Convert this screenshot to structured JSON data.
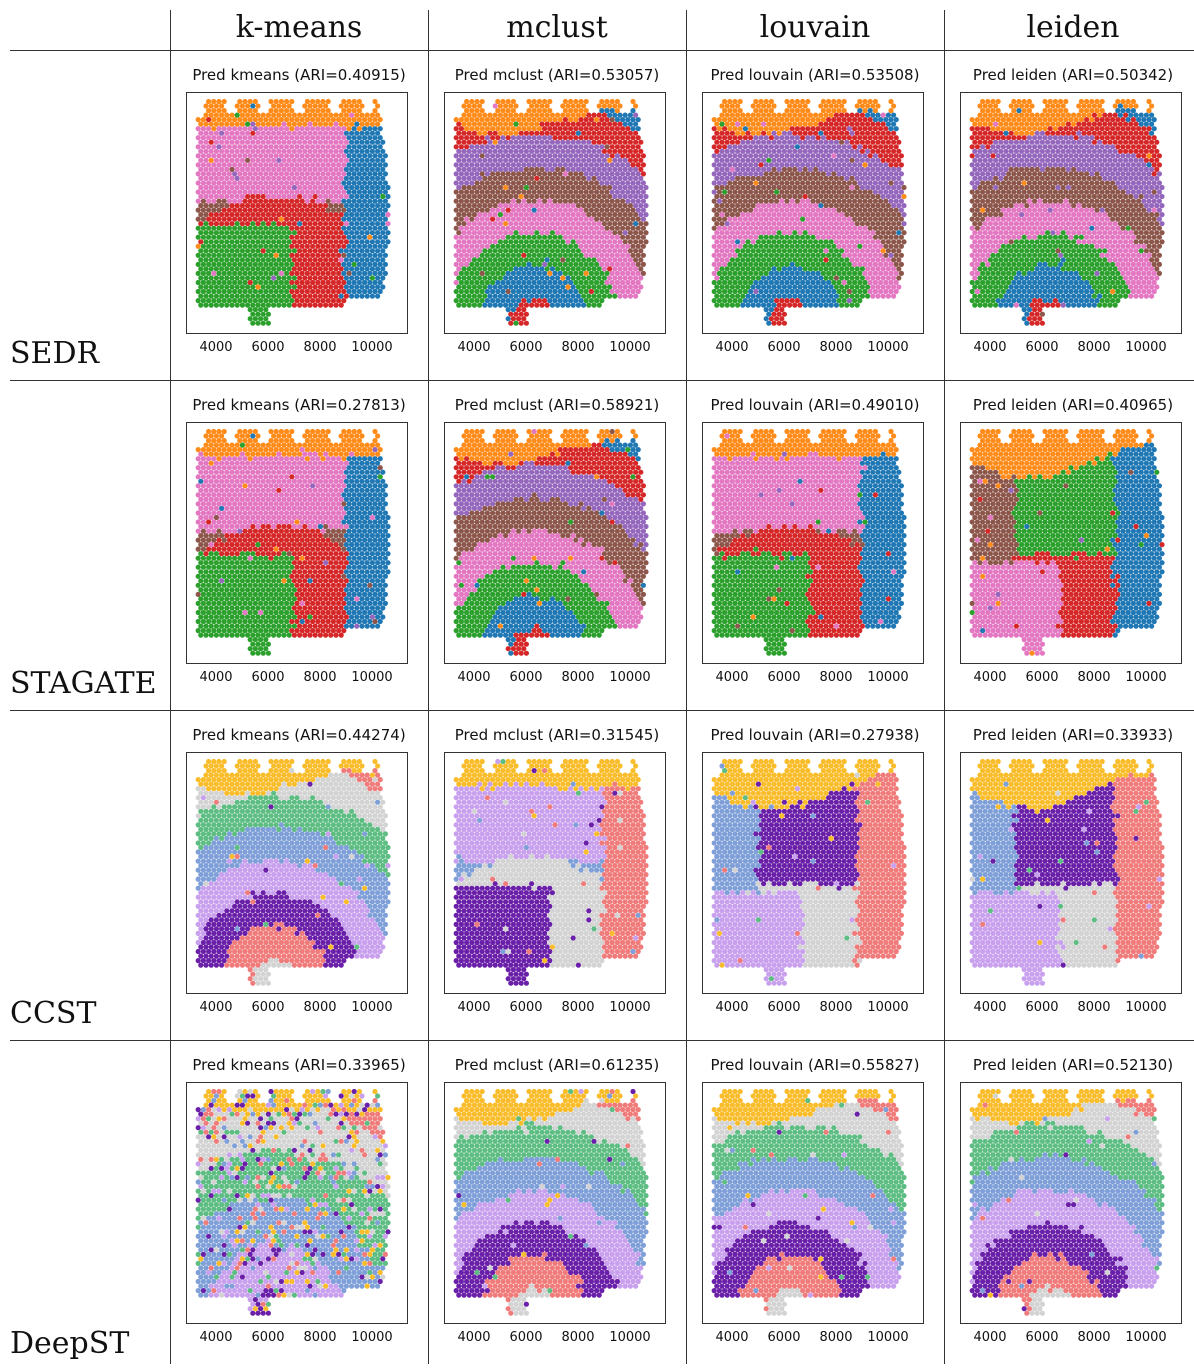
{
  "columns": [
    "k-means",
    "mclust",
    "louvain",
    "leiden"
  ],
  "rows": [
    {
      "label": "SEDR",
      "palette": "tab",
      "titles": [
        "Pred kmeans (ARI=0.40915)",
        "Pred mclust (ARI=0.53057)",
        "Pred louvain (ARI=0.53508)",
        "Pred leiden (ARI=0.50342)"
      ]
    },
    {
      "label": "STAGATE",
      "palette": "tab",
      "titles": [
        "Pred kmeans (ARI=0.27813)",
        "Pred mclust (ARI=0.58921)",
        "Pred louvain (ARI=0.49010)",
        "Pred leiden (ARI=0.40965)"
      ]
    },
    {
      "label": "CCST",
      "palette": "pastel",
      "titles": [
        "Pred kmeans (ARI=0.44274)",
        "Pred mclust (ARI=0.31545)",
        "Pred louvain (ARI=0.27938)",
        "Pred leiden (ARI=0.33933)"
      ]
    },
    {
      "label": "DeepST",
      "palette": "pastel",
      "titles": [
        "Pred kmeans (ARI=0.33965)",
        "Pred mclust (ARI=0.61235)",
        "Pred louvain (ARI=0.55827)",
        "Pred leiden (ARI=0.52130)"
      ]
    }
  ],
  "xticks": [
    "4000",
    "6000",
    "8000",
    "10000"
  ],
  "palettes": {
    "tab": [
      "#ff8c1a",
      "#1f77b4",
      "#d62728",
      "#9467bd",
      "#8c564b",
      "#e377c2",
      "#2ca02c"
    ],
    "pastel": [
      "#f9bd2b",
      "#f07b7b",
      "#d3d3d3",
      "#5dbd82",
      "#7f9fd8",
      "#c9a0ee",
      "#6a1fa8"
    ]
  }
}
